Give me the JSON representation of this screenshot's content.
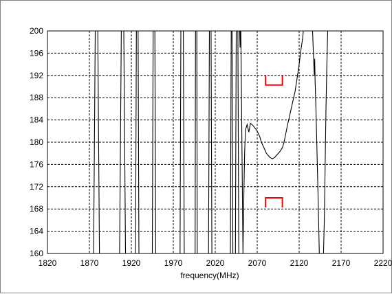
{
  "chart_data": {
    "type": "line",
    "title": "",
    "xlabel": "frequency(MHz)",
    "ylabel": "",
    "xlim": [
      1820,
      2220
    ],
    "ylim": [
      160,
      200
    ],
    "x_ticks": [
      1820,
      1870,
      1920,
      1970,
      2020,
      2070,
      2120,
      2170,
      2220
    ],
    "y_ticks": [
      160,
      164,
      168,
      172,
      176,
      180,
      184,
      188,
      192,
      196,
      200
    ],
    "x_tick_labels": [
      "1820",
      "1870",
      "1920",
      "1970",
      "2020",
      "2070",
      "2120",
      "2170",
      "2220"
    ],
    "y_tick_labels": [
      "160",
      "164",
      "168",
      "172",
      "176",
      "180",
      "184",
      "188",
      "192",
      "196",
      "200"
    ],
    "grid": true,
    "legend": "none",
    "colors": {
      "series": "#000000",
      "mask": "#ff0000",
      "grid": "#000000"
    },
    "series": [
      {
        "values": [
          [
            1875,
            160
          ],
          [
            1877,
            200
          ],
          [
            1880,
            200
          ],
          [
            1882,
            160
          ],
          [
            1906,
            160
          ],
          [
            1908,
            200
          ],
          [
            1911,
            200
          ],
          [
            1913,
            160
          ],
          [
            1925,
            160
          ],
          [
            1926,
            200
          ],
          [
            1928,
            200
          ],
          [
            1929,
            160
          ],
          [
            1945,
            160
          ],
          [
            1946,
            200
          ],
          [
            1948,
            200
          ],
          [
            1949,
            160
          ],
          [
            1978,
            160
          ],
          [
            1979,
            200
          ],
          [
            1982,
            200
          ],
          [
            1983,
            160
          ],
          [
            1996,
            160
          ],
          [
            1996.5,
            200
          ],
          [
            1998,
            200
          ],
          [
            1998.5,
            160
          ],
          [
            2012,
            160
          ],
          [
            2013,
            200
          ],
          [
            2015,
            200
          ],
          [
            2016,
            160
          ],
          [
            2038,
            160
          ],
          [
            2039,
            200
          ],
          [
            2040,
            200
          ],
          [
            2041,
            160
          ],
          [
            2044,
            160
          ],
          [
            2045,
            200
          ],
          [
            2047,
            200
          ],
          [
            2048,
            160
          ]
        ]
      },
      {
        "values": [
          [
            2049,
            200
          ],
          [
            2049.6,
            197
          ],
          [
            2050,
            200
          ],
          [
            2050.5,
            200
          ],
          [
            2053,
            160
          ],
          [
            2054,
            170
          ],
          [
            2055,
            178
          ],
          [
            2056,
            182.2
          ],
          [
            2058,
            183.2
          ],
          [
            2060,
            181.8
          ],
          [
            2062,
            183.4
          ],
          [
            2065,
            183
          ],
          [
            2070,
            182
          ],
          [
            2073,
            181
          ],
          [
            2075,
            180
          ],
          [
            2078,
            179
          ],
          [
            2081,
            178
          ],
          [
            2085,
            177.3
          ],
          [
            2088,
            177
          ],
          [
            2091,
            177.3
          ],
          [
            2094,
            177.8
          ],
          [
            2097,
            178.3
          ],
          [
            2100,
            179
          ],
          [
            2102,
            180
          ],
          [
            2104,
            181.5
          ],
          [
            2106,
            183
          ],
          [
            2109,
            185
          ],
          [
            2112,
            187
          ],
          [
            2115,
            189
          ],
          [
            2118,
            192
          ],
          [
            2120,
            194
          ],
          [
            2122,
            196.5
          ],
          [
            2124,
            198.5
          ],
          [
            2125,
            200
          ]
        ]
      },
      {
        "values": [
          [
            2136,
            200
          ],
          [
            2137,
            196
          ],
          [
            2138,
            192
          ],
          [
            2138.5,
            195
          ],
          [
            2139,
            191
          ],
          [
            2140,
            186
          ],
          [
            2141,
            180
          ],
          [
            2142,
            174
          ],
          [
            2143,
            167
          ],
          [
            2144,
            160
          ]
        ]
      },
      {
        "values": [
          [
            2149,
            160
          ],
          [
            2150,
            166
          ],
          [
            2151,
            176
          ],
          [
            2152,
            186
          ],
          [
            2153,
            194
          ],
          [
            2154,
            200
          ]
        ]
      }
    ],
    "mask_markers": [
      {
        "x": [
          2080,
          2100
        ],
        "upper_y": 192,
        "lower_y": 170
      }
    ]
  }
}
